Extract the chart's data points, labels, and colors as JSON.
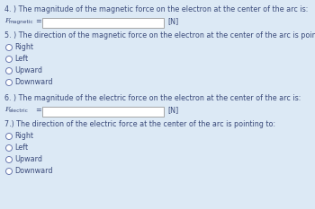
{
  "bg_color": "#dce9f5",
  "text_color": "#3a4a7a",
  "label_color": "#3a4a7a",
  "box_color": "#ffffff",
  "box_border": "#999999",
  "figsize": [
    3.5,
    2.33
  ],
  "dpi": 100,
  "sections": [
    {
      "number": "4.",
      "question": " ) The magnitude of the magnetic force on the electron at the center of the arc is:",
      "label_main": "F",
      "label_sub": "magnetic",
      "show_box": true,
      "unit": "[N]",
      "options": []
    },
    {
      "number": "5.",
      "question": " ) The direction of the magnetic force on the electron at the center of the arc is pointing to:",
      "label_main": "",
      "label_sub": "",
      "show_box": false,
      "unit": "",
      "options": [
        "Right",
        "Left",
        "Upward",
        "Downward"
      ]
    },
    {
      "number": "6.",
      "question": " ) The magnitude of the electric force on the electron at the center of the arc is:",
      "label_main": "F",
      "label_sub": "electric",
      "show_box": true,
      "unit": "[N]",
      "options": []
    },
    {
      "number": "7.",
      "question": ") The direction of the electric force at the center of the arc is pointing to:",
      "label_main": "",
      "label_sub": "",
      "show_box": false,
      "unit": "",
      "options": [
        "Right",
        "Left",
        "Upward",
        "Downward"
      ]
    }
  ]
}
